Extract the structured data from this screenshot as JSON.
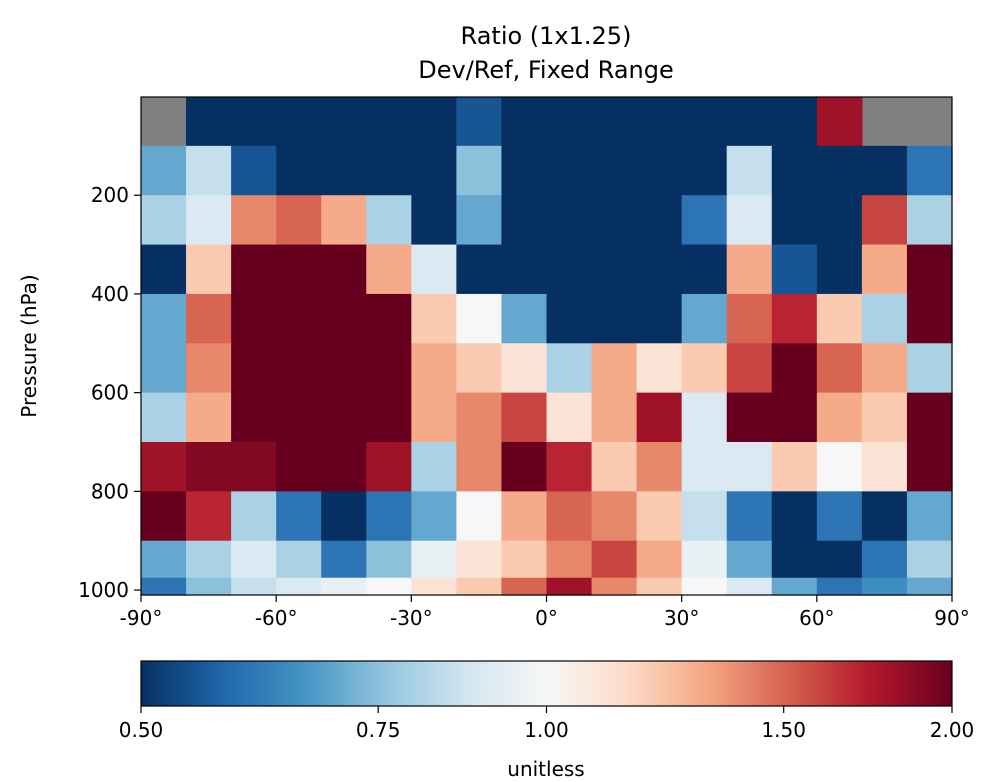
{
  "chart_data": {
    "type": "heatmap",
    "title": "Ratio (1x1.25)",
    "subtitle": "Dev/Ref, Fixed Range",
    "xlabel": "",
    "ylabel": "Pressure (hPa)",
    "x_ticks": [
      {
        "value": -90,
        "label": "-90°"
      },
      {
        "value": -60,
        "label": "-60°"
      },
      {
        "value": -30,
        "label": "-30°"
      },
      {
        "value": 0,
        "label": "0°"
      },
      {
        "value": 30,
        "label": "30°"
      },
      {
        "value": 60,
        "label": "60°"
      },
      {
        "value": 90,
        "label": "90°"
      }
    ],
    "y_ticks": [
      {
        "value": 200,
        "label": "200"
      },
      {
        "value": 400,
        "label": "400"
      },
      {
        "value": 600,
        "label": "600"
      },
      {
        "value": 800,
        "label": "800"
      },
      {
        "value": 1000,
        "label": "1000"
      }
    ],
    "xlim": [
      -90,
      90
    ],
    "ylim": [
      1010,
      1
    ],
    "grid": false,
    "colorbar": {
      "colormap": "RdBu_r",
      "range": [
        0.5,
        2.0
      ],
      "scale": "log",
      "label": "unitless",
      "ticks": [
        {
          "value": 0.5,
          "label": "0.50"
        },
        {
          "value": 0.75,
          "label": "0.75"
        },
        {
          "value": 1.0,
          "label": "1.00"
        },
        {
          "value": 1.5,
          "label": "1.50"
        },
        {
          "value": 2.0,
          "label": "2.00"
        }
      ],
      "orientation": "horizontal",
      "placement": "bottom"
    },
    "missing_color": "#808080",
    "colormap_stops": [
      "#053061",
      "#2166ac",
      "#4393c3",
      "#92c5de",
      "#d1e5f0",
      "#f7f7f7",
      "#fddbc7",
      "#f4a582",
      "#d6604d",
      "#b2182b",
      "#67001f"
    ],
    "lat_bins": [
      -90,
      -80,
      -70,
      -60,
      -50,
      -40,
      -30,
      -20,
      -10,
      0,
      10,
      20,
      30,
      40,
      50,
      60,
      70,
      80
    ],
    "pressure_levels": [
      50,
      150,
      250,
      350,
      450,
      550,
      650,
      750,
      850,
      950,
      1000
    ],
    "values": [
      [
        null,
        0.5,
        0.5,
        0.5,
        0.5,
        0.5,
        0.5,
        0.55,
        0.5,
        0.5,
        0.5,
        0.5,
        0.5,
        0.5,
        0.5,
        1.8,
        null,
        null
      ],
      [
        0.7,
        0.85,
        0.55,
        0.5,
        0.5,
        0.5,
        0.5,
        0.75,
        0.5,
        0.5,
        0.5,
        0.5,
        0.5,
        0.85,
        0.5,
        0.5,
        0.5,
        0.6
      ],
      [
        0.8,
        0.9,
        1.4,
        1.5,
        1.3,
        0.8,
        0.5,
        0.7,
        0.5,
        0.5,
        0.5,
        0.5,
        0.6,
        0.9,
        0.5,
        0.5,
        1.6,
        0.8
      ],
      [
        0.5,
        1.2,
        2.0,
        2.0,
        2.0,
        1.3,
        0.9,
        0.5,
        0.5,
        0.5,
        0.5,
        0.5,
        0.5,
        1.3,
        0.55,
        0.5,
        1.3,
        2.0
      ],
      [
        0.7,
        1.5,
        2.0,
        2.0,
        2.0,
        2.0,
        1.2,
        1.0,
        0.7,
        0.5,
        0.5,
        0.5,
        0.7,
        1.5,
        1.7,
        1.2,
        0.8,
        2.0
      ],
      [
        0.7,
        1.4,
        2.0,
        2.0,
        2.0,
        2.0,
        1.3,
        1.2,
        1.1,
        0.8,
        1.3,
        1.1,
        1.2,
        1.6,
        2.0,
        1.5,
        1.3,
        0.8
      ],
      [
        0.8,
        1.3,
        2.0,
        2.0,
        2.0,
        2.0,
        1.3,
        1.4,
        1.6,
        1.1,
        1.3,
        1.8,
        0.9,
        2.0,
        2.0,
        1.3,
        1.2,
        2.0
      ],
      [
        1.8,
        1.9,
        1.9,
        2.0,
        2.0,
        1.8,
        0.8,
        1.4,
        2.0,
        1.7,
        1.2,
        1.4,
        0.9,
        0.9,
        1.2,
        1.0,
        1.1,
        2.0
      ],
      [
        2.0,
        1.7,
        0.8,
        0.6,
        0.5,
        0.6,
        0.7,
        1.0,
        1.3,
        1.5,
        1.4,
        1.2,
        0.85,
        0.6,
        0.5,
        0.6,
        0.5,
        0.7
      ],
      [
        0.7,
        0.8,
        0.9,
        0.8,
        0.6,
        0.75,
        0.95,
        1.1,
        1.2,
        1.4,
        1.6,
        1.3,
        0.95,
        0.7,
        0.5,
        0.5,
        0.6,
        0.8
      ],
      [
        0.6,
        0.75,
        0.85,
        0.9,
        0.95,
        1.0,
        1.1,
        1.2,
        1.5,
        1.8,
        1.4,
        1.2,
        1.0,
        0.9,
        0.7,
        0.6,
        0.65,
        0.7
      ]
    ]
  }
}
